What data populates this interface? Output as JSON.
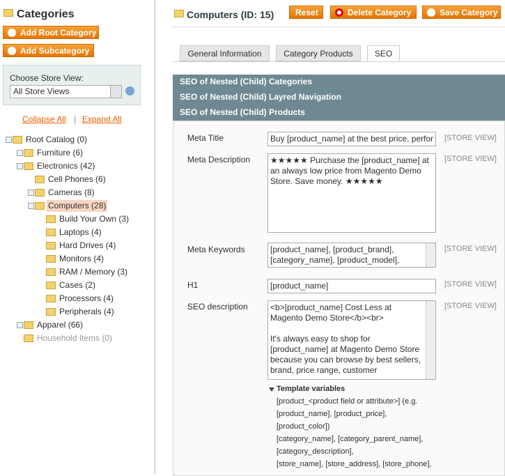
{
  "sidebar": {
    "title": "Categories",
    "buttons": [
      "Add Root Category",
      "Add Subcategory"
    ],
    "store_view": {
      "label": "Choose Store View:",
      "selected": "All Store Views"
    },
    "links": {
      "collapse": "Collapse All",
      "separator": "|",
      "expand": "Expand All"
    },
    "tree": [
      "Root Catalog (0)",
      "Furniture (6)",
      "Electronics (42)",
      "Cell Phones (6)",
      "Cameras (8)",
      "Computers (28)",
      "Build Your Own (3)",
      "Laptops (4)",
      "Hard Drives (4)",
      "Monitors (4)",
      "RAM / Memory (3)",
      "Cases (2)",
      "Processors (4)",
      "Peripherals (4)",
      "Apparel (66)",
      "Household Items (0)"
    ]
  },
  "header": {
    "title": "Computers (ID: 15)",
    "buttons": [
      "Reset",
      "Delete Category",
      "Save Category"
    ]
  },
  "tabs": [
    "General Information",
    "Category Products",
    "SEO"
  ],
  "sections": [
    "SEO of Nested (Child) Categories",
    "SEO of Nested (Child) Layred Navigation",
    "SEO of Nested (Child) Products"
  ],
  "fields": [
    {
      "label": "Meta Title",
      "value": "Buy [product_name] at the best price, perfor",
      "scope": "[STORE VIEW]"
    },
    {
      "label": "Meta Description",
      "value": "★★★★★ Purchase the [product_name] at an always low price from Magento Demo Store. Save money. ★★★★★",
      "scope": "[STORE VIEW]"
    },
    {
      "label": "Meta Keywords",
      "value": "[product_name], [product_brand], [category_name], [product_model],",
      "scope": "[STORE VIEW]"
    },
    {
      "label": "H1",
      "value": "[product_name]",
      "scope": "[STORE VIEW]"
    },
    {
      "label": "SEO description",
      "value": "<b>[product_name] Cost Less at Magento Demo Store</b><br>\n\nIt's always easy to shop for [product_name] at Magento Demo Store because you can browse by best sellers, brand, price range, customer",
      "scope": "[STORE VIEW]"
    }
  ],
  "template_variables": {
    "title": "Template variables",
    "lines": [
      "[product_<product field or attribute>] (e.g.",
      "[product_name], [product_price],",
      "[product_color])",
      "[category_name], [category_parent_name],",
      "[category_description],",
      "[store_name], [store_address], [store_phone],"
    ]
  }
}
